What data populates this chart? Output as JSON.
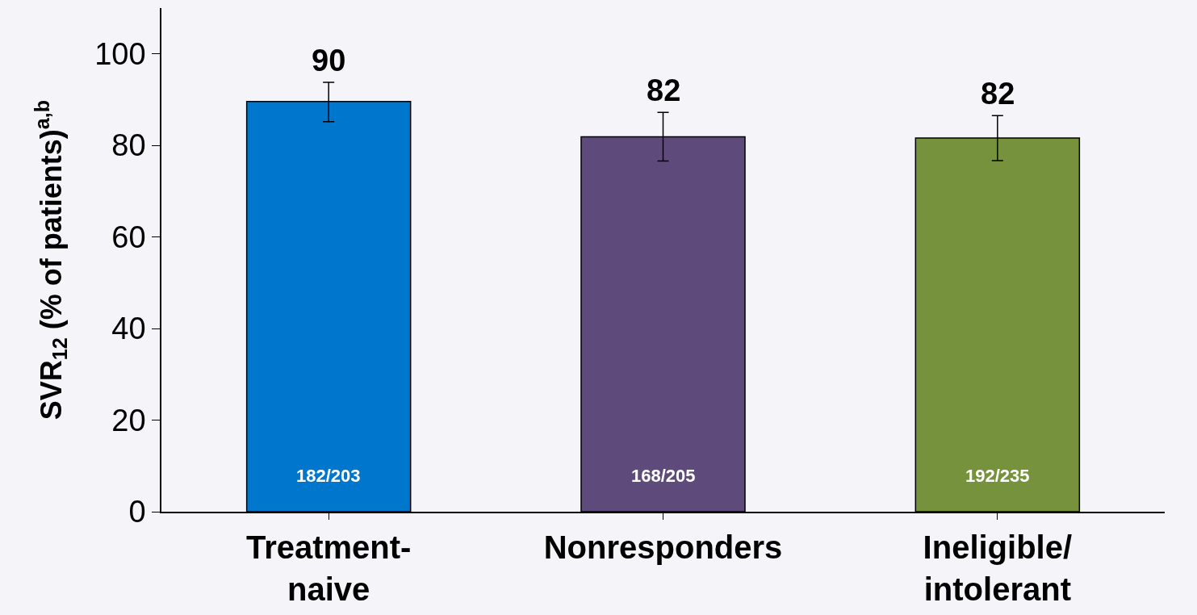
{
  "chart_data": {
    "type": "bar",
    "ylabel": "SVR$_{12}$ (% of patients)$^{a,b}$",
    "categories": [
      "Treatment-\nnaive",
      "Nonresponders",
      "Ineligible/\nintolerant"
    ],
    "values": [
      89.6,
      81.9,
      81.6
    ],
    "colors": [
      "#0077cc",
      "#5f4b7b",
      "#76923c"
    ],
    "errors": [
      [
        85.2,
        93.8
      ],
      [
        76.6,
        87.2
      ],
      [
        76.7,
        86.5
      ]
    ],
    "value_labels": [
      "90",
      "82",
      "82"
    ],
    "annotations": [
      "182/203",
      "168/205",
      "192/235"
    ],
    "ylim": [
      0,
      110
    ],
    "yticks": [
      0,
      20,
      40,
      60,
      80,
      100
    ],
    "grid": false
  }
}
